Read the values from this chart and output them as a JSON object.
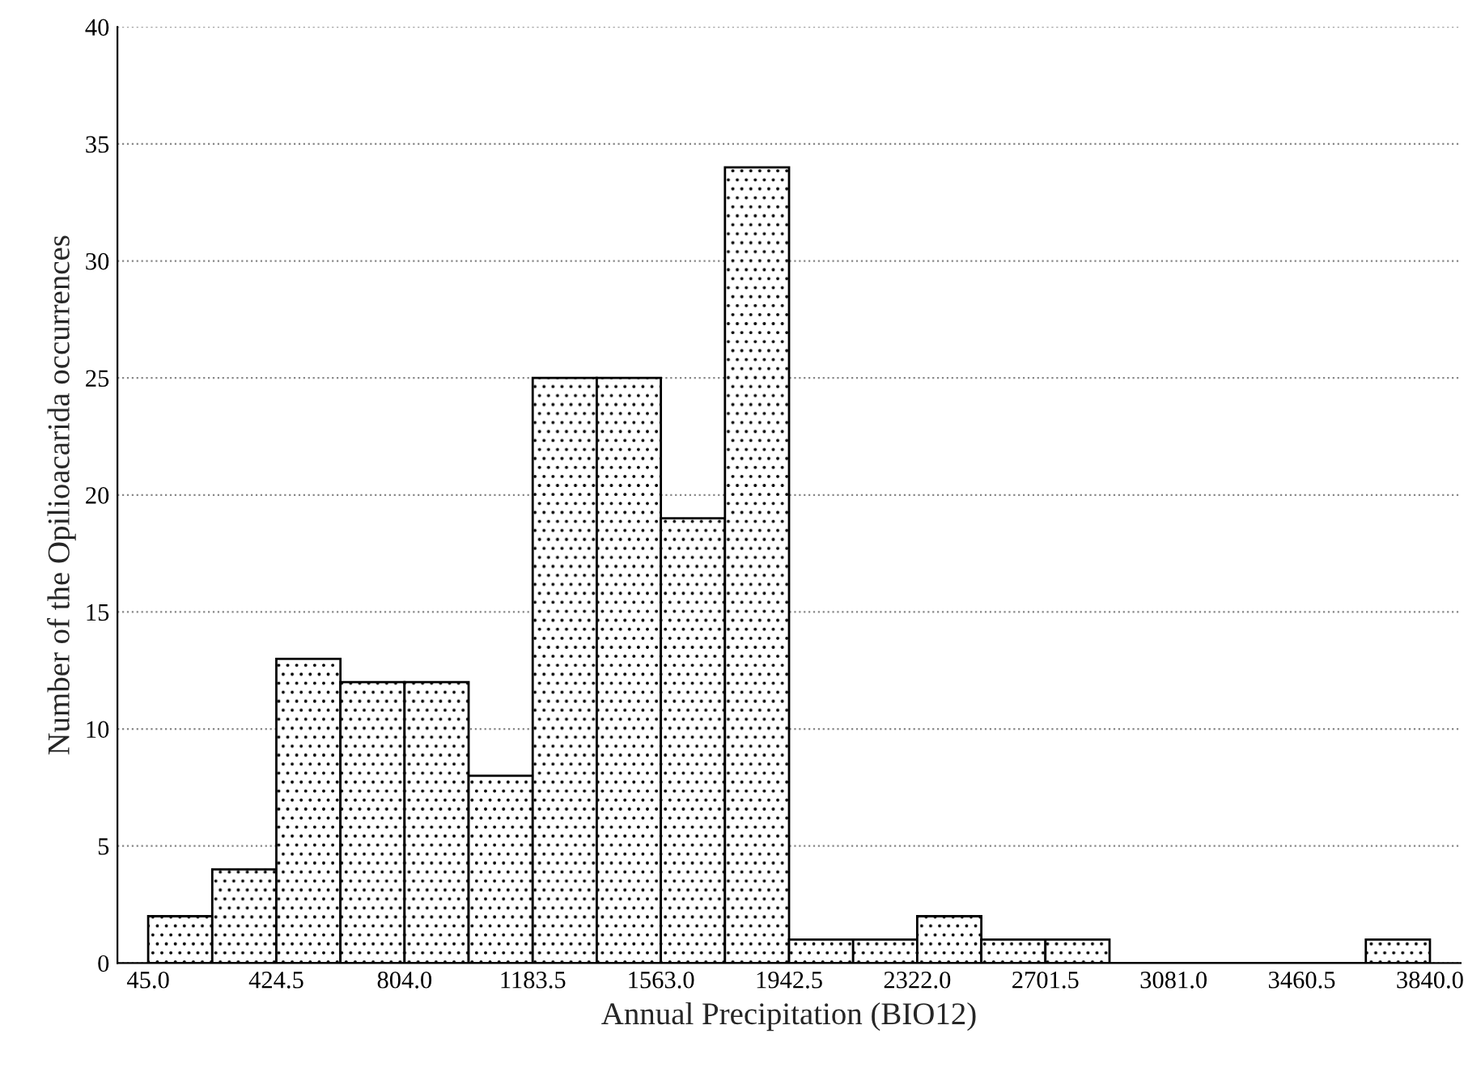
{
  "chart_data": {
    "type": "histogram",
    "xlabel": "Annual Precipitation (BIO12)",
    "ylabel": "Number of the Opilioacarida occurrences",
    "bins": [
      45,
      234.75,
      424.5,
      614.25,
      804,
      993.75,
      1183.5,
      1373.25,
      1563,
      1752.75,
      1942.5,
      2132.25,
      2322,
      2511.75,
      2701.5,
      2891.25,
      3081,
      3270.75,
      3460.5,
      3650.25,
      3840
    ],
    "values": [
      2,
      4,
      13,
      12,
      12,
      8,
      25,
      25,
      19,
      34,
      1,
      1,
      2,
      1,
      1,
      0,
      0,
      0,
      0,
      1
    ],
    "xlim": [
      -46,
      3931
    ],
    "xticks": [
      {
        "value": 45,
        "label": "45.0"
      },
      {
        "value": 424.5,
        "label": "424.5"
      },
      {
        "value": 804,
        "label": "804.0"
      },
      {
        "value": 1183.5,
        "label": "1183.5"
      },
      {
        "value": 1563,
        "label": "1563.0"
      },
      {
        "value": 1942.5,
        "label": "1942.5"
      },
      {
        "value": 2322,
        "label": "2322.0"
      },
      {
        "value": 2701.5,
        "label": "2701.5"
      },
      {
        "value": 3081,
        "label": "3081.0"
      },
      {
        "value": 3460.5,
        "label": "3460.5"
      },
      {
        "value": 3840,
        "label": "3840.0"
      }
    ],
    "ylim": [
      0,
      40
    ],
    "yticks": [
      0,
      5,
      10,
      15,
      20,
      25,
      30,
      35,
      40
    ],
    "grid": "y"
  }
}
